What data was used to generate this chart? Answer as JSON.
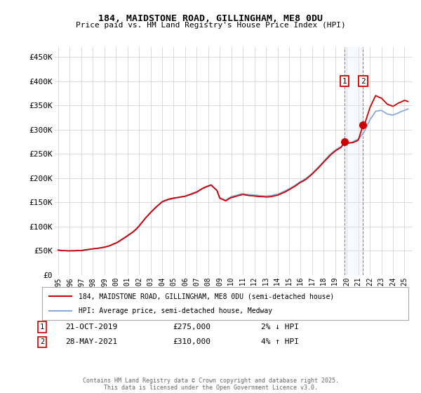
{
  "title": "184, MAIDSTONE ROAD, GILLINGHAM, ME8 0DU",
  "subtitle": "Price paid vs. HM Land Registry's House Price Index (HPI)",
  "ylabel_ticks": [
    "£0",
    "£50K",
    "£100K",
    "£150K",
    "£200K",
    "£250K",
    "£300K",
    "£350K",
    "£400K",
    "£450K"
  ],
  "ytick_values": [
    0,
    50000,
    100000,
    150000,
    200000,
    250000,
    300000,
    350000,
    400000,
    450000
  ],
  "ylim": [
    0,
    470000
  ],
  "marker1_x": 2019.82,
  "marker1_price": 275000,
  "marker2_x": 2021.41,
  "marker2_price": 310000,
  "legend_line1": "184, MAIDSTONE ROAD, GILLINGHAM, ME8 0DU (semi-detached house)",
  "legend_line2": "HPI: Average price, semi-detached house, Medway",
  "price_line_color": "#cc0000",
  "hpi_line_color": "#88aadd",
  "marker_box_color": "#cc0000",
  "shaded_region_color": "#ddeeff",
  "footnote": "Contains HM Land Registry data © Crown copyright and database right 2025.\nThis data is licensed under the Open Government Licence v3.0.",
  "background_color": "#ffffff",
  "grid_color": "#cccccc",
  "hpi_breakpoints": [
    [
      1995.0,
      51000
    ],
    [
      1995.5,
      50500
    ],
    [
      1996.0,
      50000
    ],
    [
      1996.5,
      50200
    ],
    [
      1997.0,
      51000
    ],
    [
      1997.5,
      52000
    ],
    [
      1998.0,
      54000
    ],
    [
      1998.5,
      55000
    ],
    [
      1999.0,
      57000
    ],
    [
      1999.5,
      60000
    ],
    [
      2000.0,
      65000
    ],
    [
      2000.5,
      72000
    ],
    [
      2001.0,
      80000
    ],
    [
      2001.5,
      88000
    ],
    [
      2002.0,
      100000
    ],
    [
      2002.5,
      115000
    ],
    [
      2003.0,
      128000
    ],
    [
      2003.5,
      140000
    ],
    [
      2004.0,
      150000
    ],
    [
      2004.5,
      155000
    ],
    [
      2005.0,
      158000
    ],
    [
      2005.5,
      160000
    ],
    [
      2006.0,
      162000
    ],
    [
      2006.5,
      166000
    ],
    [
      2007.0,
      170000
    ],
    [
      2007.5,
      178000
    ],
    [
      2008.0,
      183000
    ],
    [
      2008.25,
      185000
    ],
    [
      2008.75,
      175000
    ],
    [
      2009.0,
      160000
    ],
    [
      2009.5,
      155000
    ],
    [
      2010.0,
      162000
    ],
    [
      2010.5,
      165000
    ],
    [
      2011.0,
      168000
    ],
    [
      2011.5,
      166000
    ],
    [
      2012.0,
      165000
    ],
    [
      2012.5,
      164000
    ],
    [
      2013.0,
      163000
    ],
    [
      2013.5,
      164000
    ],
    [
      2014.0,
      167000
    ],
    [
      2014.5,
      172000
    ],
    [
      2015.0,
      178000
    ],
    [
      2015.5,
      185000
    ],
    [
      2016.0,
      193000
    ],
    [
      2016.5,
      200000
    ],
    [
      2017.0,
      210000
    ],
    [
      2017.5,
      222000
    ],
    [
      2018.0,
      235000
    ],
    [
      2018.5,
      248000
    ],
    [
      2019.0,
      258000
    ],
    [
      2019.5,
      265000
    ],
    [
      2020.0,
      272000
    ],
    [
      2020.5,
      275000
    ],
    [
      2021.0,
      280000
    ],
    [
      2021.5,
      295000
    ],
    [
      2022.0,
      320000
    ],
    [
      2022.5,
      338000
    ],
    [
      2023.0,
      340000
    ],
    [
      2023.5,
      332000
    ],
    [
      2024.0,
      330000
    ],
    [
      2024.5,
      335000
    ],
    [
      2025.0,
      340000
    ],
    [
      2025.3,
      343000
    ]
  ],
  "price_breakpoints": [
    [
      1995.0,
      51000
    ],
    [
      1995.5,
      50200
    ],
    [
      1996.0,
      49800
    ],
    [
      1996.5,
      50100
    ],
    [
      1997.0,
      51200
    ],
    [
      1997.5,
      52500
    ],
    [
      1998.0,
      54500
    ],
    [
      1998.5,
      55500
    ],
    [
      1999.0,
      57500
    ],
    [
      1999.5,
      61000
    ],
    [
      2000.0,
      66000
    ],
    [
      2000.5,
      73000
    ],
    [
      2001.0,
      81000
    ],
    [
      2001.5,
      89000
    ],
    [
      2002.0,
      101000
    ],
    [
      2002.5,
      116000
    ],
    [
      2003.0,
      129000
    ],
    [
      2003.5,
      141000
    ],
    [
      2004.0,
      151000
    ],
    [
      2004.5,
      156000
    ],
    [
      2005.0,
      159000
    ],
    [
      2005.5,
      161000
    ],
    [
      2006.0,
      163000
    ],
    [
      2006.5,
      167000
    ],
    [
      2007.0,
      171000
    ],
    [
      2007.5,
      179000
    ],
    [
      2008.0,
      184000
    ],
    [
      2008.25,
      186000
    ],
    [
      2008.75,
      174000
    ],
    [
      2009.0,
      158000
    ],
    [
      2009.5,
      153000
    ],
    [
      2010.0,
      160000
    ],
    [
      2010.5,
      163000
    ],
    [
      2011.0,
      166000
    ],
    [
      2011.5,
      164000
    ],
    [
      2012.0,
      163000
    ],
    [
      2012.5,
      162000
    ],
    [
      2013.0,
      161000
    ],
    [
      2013.5,
      162000
    ],
    [
      2014.0,
      165000
    ],
    [
      2014.5,
      170000
    ],
    [
      2015.0,
      176000
    ],
    [
      2015.5,
      183000
    ],
    [
      2016.0,
      191000
    ],
    [
      2016.5,
      198000
    ],
    [
      2017.0,
      208000
    ],
    [
      2017.5,
      220000
    ],
    [
      2018.0,
      233000
    ],
    [
      2018.5,
      246000
    ],
    [
      2019.0,
      256000
    ],
    [
      2019.5,
      263000
    ],
    [
      2019.82,
      275000
    ],
    [
      2020.0,
      272000
    ],
    [
      2020.5,
      273000
    ],
    [
      2021.0,
      278000
    ],
    [
      2021.41,
      310000
    ],
    [
      2021.5,
      308000
    ],
    [
      2022.0,
      345000
    ],
    [
      2022.5,
      370000
    ],
    [
      2023.0,
      365000
    ],
    [
      2023.5,
      352000
    ],
    [
      2024.0,
      348000
    ],
    [
      2024.5,
      355000
    ],
    [
      2025.0,
      360000
    ],
    [
      2025.3,
      358000
    ]
  ]
}
